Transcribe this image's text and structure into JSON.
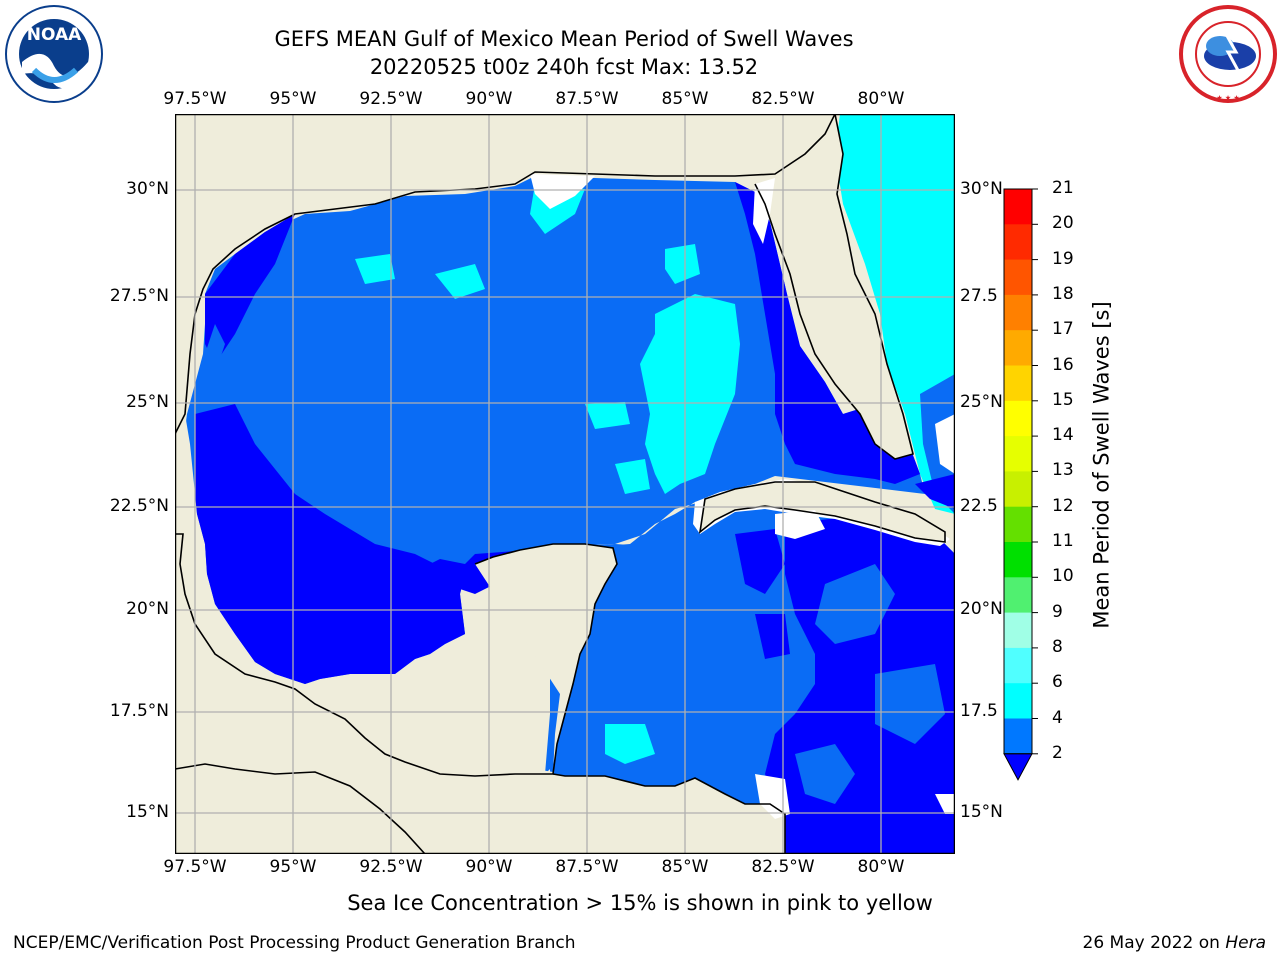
{
  "title": {
    "line1": "GEFS MEAN Gulf of Mexico Mean Period of Swell Waves",
    "line2": "20220525 t00z 240h fcst   Max: 13.52"
  },
  "logos": {
    "left": {
      "text": "NOAA",
      "ring_text": "NATIONAL OCEANIC AND ATMOSPHERIC ADMINISTRATION · U.S. DEPARTMENT OF COMMERCE",
      "color": "#0a3e8c"
    },
    "right": {
      "ring_text": "NATIONAL WEATHER SERVICE",
      "color": "#d8232a"
    }
  },
  "map": {
    "lon_ticks": [
      "97.5°W",
      "95°W",
      "92.5°W",
      "90°W",
      "87.5°W",
      "85°W",
      "82.5°W",
      "80°W"
    ],
    "lat_ticks_left": [
      "30°N",
      "27.5°N",
      "25°N",
      "22.5°N",
      "20°N",
      "17.5°N",
      "15°N"
    ],
    "lat_ticks_right": [
      "30°N",
      "27.5",
      "25°N",
      "22.5",
      "20°N",
      "17.5",
      "15°N"
    ],
    "colors": {
      "land": "#efeddb",
      "ocean_deep": "#0000ff",
      "ocean_mid": "#0a6cf5",
      "cyan": "#00ffff",
      "green": "#40e040",
      "grid": "#b0b0b0"
    }
  },
  "colorbar": {
    "title": "Mean Period of Swell Waves [s]",
    "labels": [
      "21",
      "20",
      "19",
      "18",
      "17",
      "16",
      "15",
      "14",
      "13",
      "12",
      "11",
      "10",
      "9",
      "8",
      "6",
      "4",
      "2"
    ],
    "colors": [
      "#ff0000",
      "#ff2a00",
      "#ff5500",
      "#ff8000",
      "#ffaa00",
      "#ffd400",
      "#ffff00",
      "#e6ff00",
      "#c8f000",
      "#64e000",
      "#00e000",
      "#50f070",
      "#a0ffe6",
      "#50ffff",
      "#00ffff",
      "#0078ff"
    ],
    "extend_color": "#0000ff"
  },
  "caption": "Sea Ice Concentration > 15% is shown in pink to yellow",
  "footer": {
    "left": "NCEP/EMC/Verification Post Processing Product Generation Branch",
    "date": "26 May 2022 on ",
    "machine": "Hera"
  }
}
